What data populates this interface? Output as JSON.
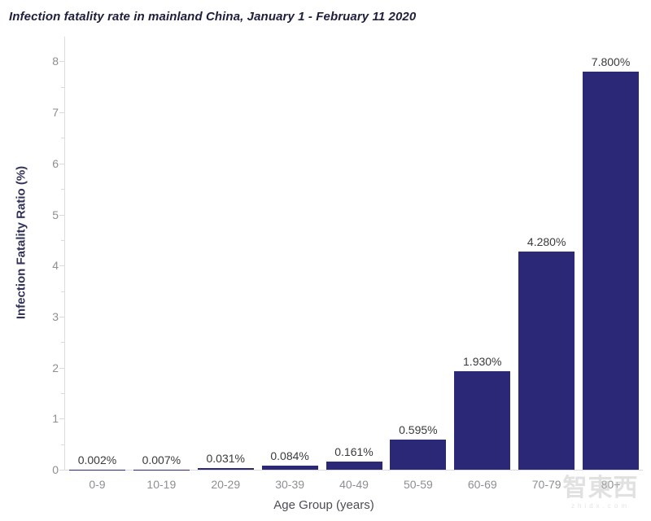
{
  "chart_data": {
    "type": "bar",
    "title": "Infection fatality rate in mainland China, January 1 - February 11 2020",
    "xlabel": "Age Group (years)",
    "ylabel": "Infection Fatality Ratio (%)",
    "categories": [
      "0-9",
      "10-19",
      "20-29",
      "30-39",
      "40-49",
      "50-59",
      "60-69",
      "70-79",
      "80+"
    ],
    "values": [
      0.002,
      0.007,
      0.031,
      0.084,
      0.161,
      0.595,
      1.93,
      4.28,
      7.8
    ],
    "value_labels": [
      "0.002%",
      "0.007%",
      "0.031%",
      "0.084%",
      "0.161%",
      "0.595%",
      "1.930%",
      "4.280%",
      "7.800%"
    ],
    "ylim": [
      0,
      8
    ],
    "yticks": [
      0,
      1,
      2,
      3,
      4,
      5,
      6,
      7,
      8
    ],
    "minor_tick_step": 0.5,
    "grid": false,
    "legend_position": "none",
    "bar_color": "#2b2878"
  },
  "watermark": {
    "logo_text": "智東西",
    "site_text": "zhidx.com"
  },
  "colors": {
    "bar": "#2b2878",
    "axis_line": "#dcdcdc",
    "tick_label": "#8e8e93",
    "data_label": "#3a3a3a",
    "title": "#1e1e3e",
    "background": "#ffffff"
  }
}
